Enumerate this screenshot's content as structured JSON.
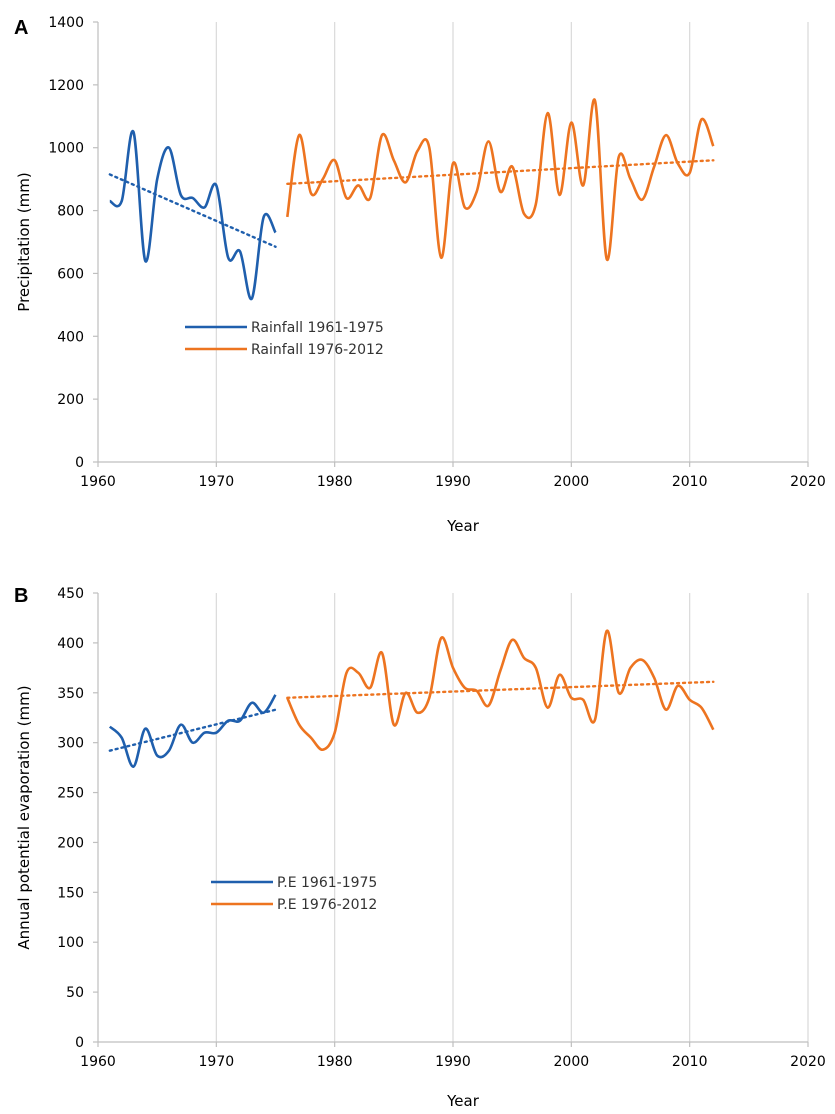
{
  "chart_data": [
    {
      "type": "line",
      "panel_label": "A",
      "title": "",
      "xlabel": "Year",
      "ylabel": "Precipitation (mm)",
      "xlim": [
        1960,
        2020
      ],
      "ylim": [
        0,
        1400
      ],
      "x_ticks": [
        1960,
        1970,
        1980,
        1990,
        2000,
        2010,
        2020
      ],
      "y_ticks": [
        0,
        200,
        400,
        600,
        800,
        1000,
        1200,
        1400
      ],
      "grid": "vertical",
      "legend_position": "center-left",
      "series": [
        {
          "name": "Rainfall 1961-1975",
          "color": "#1f5fad",
          "x": [
            1961,
            1962,
            1963,
            1964,
            1965,
            1966,
            1967,
            1968,
            1969,
            1970,
            1971,
            1972,
            1973,
            1974,
            1975
          ],
          "values": [
            830,
            830,
            1050,
            640,
            900,
            1000,
            850,
            840,
            810,
            880,
            650,
            670,
            520,
            780,
            730
          ],
          "trend": [
            915,
            685
          ]
        },
        {
          "name": "Rainfall 1976-2012",
          "color": "#ed7420",
          "x": [
            1976,
            1977,
            1978,
            1979,
            1980,
            1981,
            1982,
            1983,
            1984,
            1985,
            1986,
            1987,
            1988,
            1989,
            1990,
            1991,
            1992,
            1993,
            1994,
            1995,
            1996,
            1997,
            1998,
            1999,
            2000,
            2001,
            2002,
            2003,
            2004,
            2005,
            2006,
            2007,
            2008,
            2009,
            2010,
            2011,
            2012
          ],
          "values": [
            780,
            1040,
            855,
            900,
            960,
            840,
            880,
            840,
            1040,
            960,
            890,
            990,
            1000,
            650,
            950,
            810,
            860,
            1020,
            860,
            940,
            790,
            820,
            1110,
            850,
            1080,
            880,
            1150,
            645,
            970,
            900,
            835,
            940,
            1040,
            950,
            920,
            1090,
            1005
          ],
          "trend": [
            885,
            960
          ]
        }
      ]
    },
    {
      "type": "line",
      "panel_label": "B",
      "title": "",
      "xlabel": "Year",
      "ylabel": "Annual potential evaporation (mm)",
      "xlim": [
        1960,
        2020
      ],
      "ylim": [
        0,
        450
      ],
      "x_ticks": [
        1960,
        1970,
        1980,
        1990,
        2000,
        2010,
        2020
      ],
      "y_ticks": [
        0,
        50,
        100,
        150,
        200,
        250,
        300,
        350,
        400,
        450
      ],
      "grid": "vertical",
      "legend_position": "center-left",
      "series": [
        {
          "name": "P.E 1961-1975",
          "color": "#1f5fad",
          "x": [
            1961,
            1962,
            1963,
            1964,
            1965,
            1966,
            1967,
            1968,
            1969,
            1970,
            1971,
            1972,
            1973,
            1974,
            1975
          ],
          "values": [
            316,
            305,
            276,
            314,
            287,
            292,
            318,
            300,
            310,
            310,
            322,
            322,
            340,
            330,
            348
          ],
          "trend": [
            292,
            333
          ]
        },
        {
          "name": "P.E 1976-2012",
          "color": "#ed7420",
          "x": [
            1976,
            1977,
            1978,
            1979,
            1980,
            1981,
            1982,
            1983,
            1984,
            1985,
            1986,
            1987,
            1988,
            1989,
            1990,
            1991,
            1992,
            1993,
            1994,
            1995,
            1996,
            1997,
            1998,
            1999,
            2000,
            2001,
            2002,
            2003,
            2004,
            2005,
            2006,
            2007,
            2008,
            2009,
            2010,
            2011,
            2012
          ],
          "values": [
            345,
            318,
            305,
            293,
            310,
            370,
            370,
            355,
            390,
            318,
            350,
            330,
            345,
            405,
            375,
            355,
            352,
            337,
            372,
            403,
            385,
            375,
            335,
            368,
            345,
            343,
            323,
            412,
            350,
            375,
            383,
            365,
            333,
            357,
            343,
            335,
            313
          ],
          "trend": [
            345,
            361
          ]
        }
      ]
    }
  ]
}
